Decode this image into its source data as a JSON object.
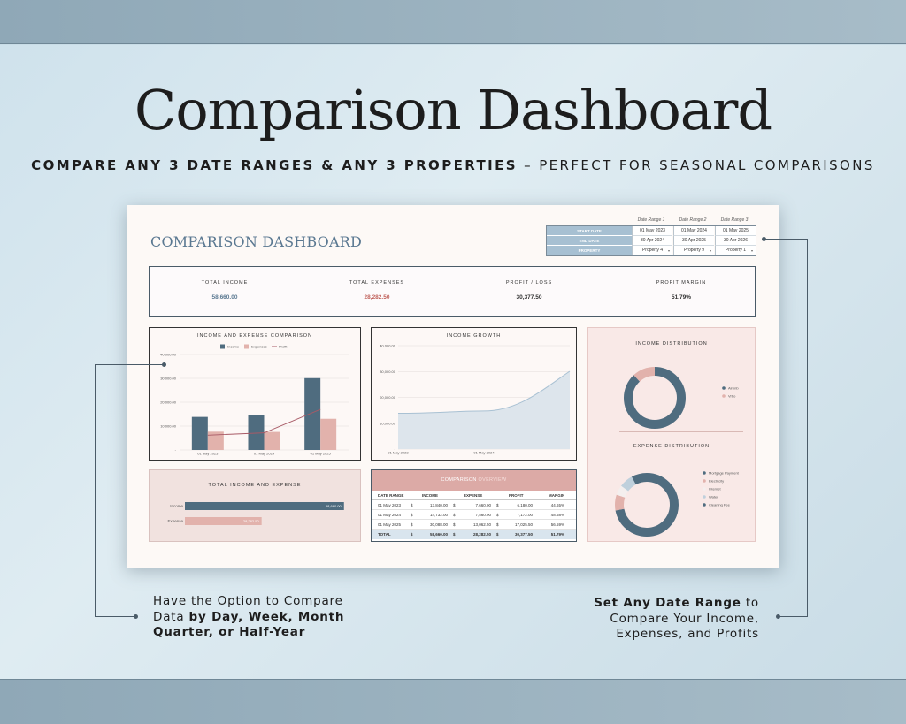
{
  "hero": {
    "title": "Comparison Dashboard",
    "subtitle_bold": "COMPARE ANY 3 DATE RANGES & ANY 3 PROPERTIES",
    "subtitle_rest": " – PERFECT FOR SEASONAL COMPARISONS"
  },
  "sheet": {
    "title": "COMPARISON DASHBOARD",
    "date_table": {
      "headers": [
        "Date Range 1",
        "Date Range 2",
        "Date Range 3"
      ],
      "rows": [
        {
          "label": "START DATE",
          "values": [
            "01 May 2023",
            "01 May 2024",
            "01 May 2025"
          ]
        },
        {
          "label": "END DATE",
          "values": [
            "30 Apr 2024",
            "30 Apr 2025",
            "30 Apr 2026"
          ]
        },
        {
          "label": "PROPERTY",
          "values": [
            "Property 4",
            "Property 9",
            "Property 1"
          ]
        }
      ]
    },
    "kpis": [
      {
        "label": "TOTAL INCOME",
        "value": "58,660.00",
        "color": "#5a7891"
      },
      {
        "label": "TOTAL EXPENSES",
        "value": "28,282.50",
        "color": "#c0605a"
      },
      {
        "label": "PROFIT / LOSS",
        "value": "30,377.50",
        "color": "#333333"
      },
      {
        "label": "PROFIT MARGIN",
        "value": "51.79%",
        "color": "#333333"
      }
    ],
    "bar_chart_title": "INCOME AND EXPENSE COMPARISON",
    "growth_chart_title": "INCOME GROWTH",
    "income_dist_title": "INCOME DISTRIBUTION",
    "expense_dist_title": "EXPENSE DISTRIBUTION",
    "total_title": "TOTAL INCOME AND EXPENSE",
    "total_bars": [
      {
        "label": "Income",
        "value": 58660,
        "display": "58,660.00",
        "color": "#4f6c7f"
      },
      {
        "label": "Expense",
        "value": 28282.5,
        "display": "28,282.50",
        "color": "#e2b2ac"
      }
    ],
    "total_max": 62000,
    "overview": {
      "title_a": "COMPARISON",
      "title_b": " OVERVIEW",
      "columns": [
        "DATE RANGE",
        "INCOME",
        "EXPENSE",
        "PROFIT",
        "MARGIN"
      ],
      "currency": "$",
      "rows": [
        {
          "range": "01 May 2023",
          "income": "13,840.00",
          "expense": "7,660.00",
          "profit": "6,180.00",
          "margin": "44.65%"
        },
        {
          "range": "01 May 2024",
          "income": "14,732.00",
          "expense": "7,560.00",
          "profit": "7,172.00",
          "margin": "48.68%"
        },
        {
          "range": "01 May 2025",
          "income": "30,088.00",
          "expense": "13,062.50",
          "profit": "17,025.50",
          "margin": "56.59%"
        }
      ],
      "total": {
        "range": "TOTAL",
        "income": "58,660.00",
        "expense": "28,282.50",
        "profit": "30,377.50",
        "margin": "51.79%"
      }
    }
  },
  "chart_data": [
    {
      "type": "bar",
      "title": "INCOME AND EXPENSE COMPARISON",
      "categories": [
        "01 May 2023",
        "01 May 2024",
        "01 May 2025"
      ],
      "series": [
        {
          "name": "Income",
          "values": [
            13840,
            14732,
            30088
          ],
          "color": "#4f6c7f"
        },
        {
          "name": "Expenses",
          "values": [
            7660,
            7560,
            13062.5
          ],
          "color": "#e2b2ac"
        },
        {
          "name": "Profit",
          "values": [
            6180,
            7172,
            17025.5
          ],
          "color": "#a85a66",
          "render": "line"
        }
      ],
      "yticks": [
        "40,000.00",
        "30,000.00",
        "20,000.00",
        "10,000.00",
        "-"
      ],
      "ylim": [
        0,
        40000
      ],
      "legend": "top",
      "grid": true
    },
    {
      "type": "area",
      "title": "INCOME GROWTH",
      "x": [
        "01 May 2023",
        "01 May 2024",
        "01 May 2025"
      ],
      "xticks": [
        "01 May 2023",
        "01 May 2024"
      ],
      "values": [
        13840,
        14732,
        30088
      ],
      "yticks": [
        "40,000.00",
        "30,000.00",
        "20,000.00",
        "10,000.00",
        "-"
      ],
      "ylim": [
        0,
        40000
      ],
      "grid": true
    },
    {
      "type": "pie",
      "title": "INCOME DISTRIBUTION",
      "labels": [
        "Airbnb",
        "Vrbo"
      ],
      "values": [
        88,
        12
      ],
      "colors": [
        "#4f6c7f",
        "#e2b2ac"
      ],
      "legend": "right"
    },
    {
      "type": "pie",
      "title": "EXPENSE DISTRIBUTION",
      "labels": [
        "Mortgage Payment",
        "Electricity",
        "Internet",
        "Water",
        "Cleaning Fee"
      ],
      "values": [
        72,
        8,
        5,
        7,
        8
      ],
      "colors": [
        "#4f6c7f",
        "#e2b2ac",
        "#f4efee",
        "#bfd0dc",
        "#4f6c7f"
      ],
      "legend": "right"
    }
  ],
  "callouts": {
    "left_line1": "Have the Option to Compare",
    "left_line2_a": "Data ",
    "left_line2_b": "by Day, Week, Month",
    "left_line3": "Quarter, or Half-Year",
    "right_line1_b": "Set Any Date Range",
    "right_line1_a": " to",
    "right_line2": "Compare Your Income,",
    "right_line3": "Expenses, and Profits"
  }
}
